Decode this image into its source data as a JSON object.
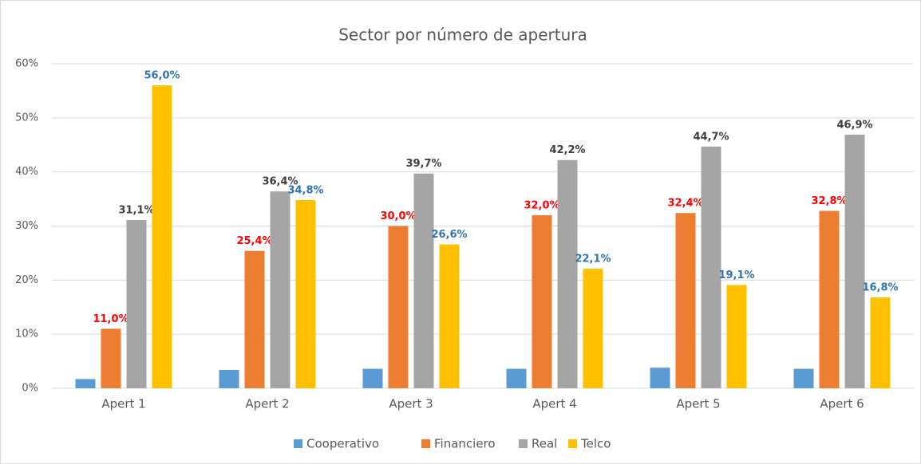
{
  "chart_data": {
    "type": "bar",
    "title": "Sector por número de apertura",
    "categories": [
      "Apert 1",
      "Apert 2",
      "Apert 3",
      "Apert 4",
      "Apert 5",
      "Apert 6"
    ],
    "series": [
      {
        "name": "Cooperativo",
        "color": "#5b9bd5",
        "values": [
          1.7,
          3.4,
          3.6,
          3.6,
          3.8,
          3.6
        ]
      },
      {
        "name": "Financiero",
        "color": "#ed7d31",
        "label_color": "#ff0000",
        "values": [
          11.0,
          25.4,
          30.0,
          32.0,
          32.4,
          32.8
        ],
        "value_labels": [
          "11,0%",
          "25,4%",
          "30,0%",
          "32,0%",
          "32,4%",
          "32,8%"
        ]
      },
      {
        "name": "Real",
        "color": "#a5a5a5",
        "label_color": "#404040",
        "values": [
          31.1,
          36.4,
          39.7,
          42.2,
          44.7,
          46.9
        ],
        "value_labels": [
          "31,1%",
          "36,4%",
          "39,7%",
          "42,2%",
          "44,7%",
          "46,9%"
        ]
      },
      {
        "name": "Telco",
        "color": "#ffc000",
        "label_color": "#2e75b6",
        "values": [
          56.0,
          34.8,
          26.6,
          22.1,
          19.1,
          16.8
        ],
        "value_labels": [
          "56,0%",
          "34,8%",
          "26,6%",
          "22,1%",
          "19,1%",
          "16,8%"
        ]
      }
    ],
    "ylim": [
      0,
      60
    ],
    "yticks": [
      {
        "value": 0,
        "label": "0%"
      },
      {
        "value": 10,
        "label": "10%"
      },
      {
        "value": 20,
        "label": "20%"
      },
      {
        "value": 30,
        "label": "30%"
      },
      {
        "value": 40,
        "label": "40%"
      },
      {
        "value": 50,
        "label": "50%"
      },
      {
        "value": 60,
        "label": "60%"
      }
    ],
    "grid": true,
    "legend": "bottom"
  }
}
